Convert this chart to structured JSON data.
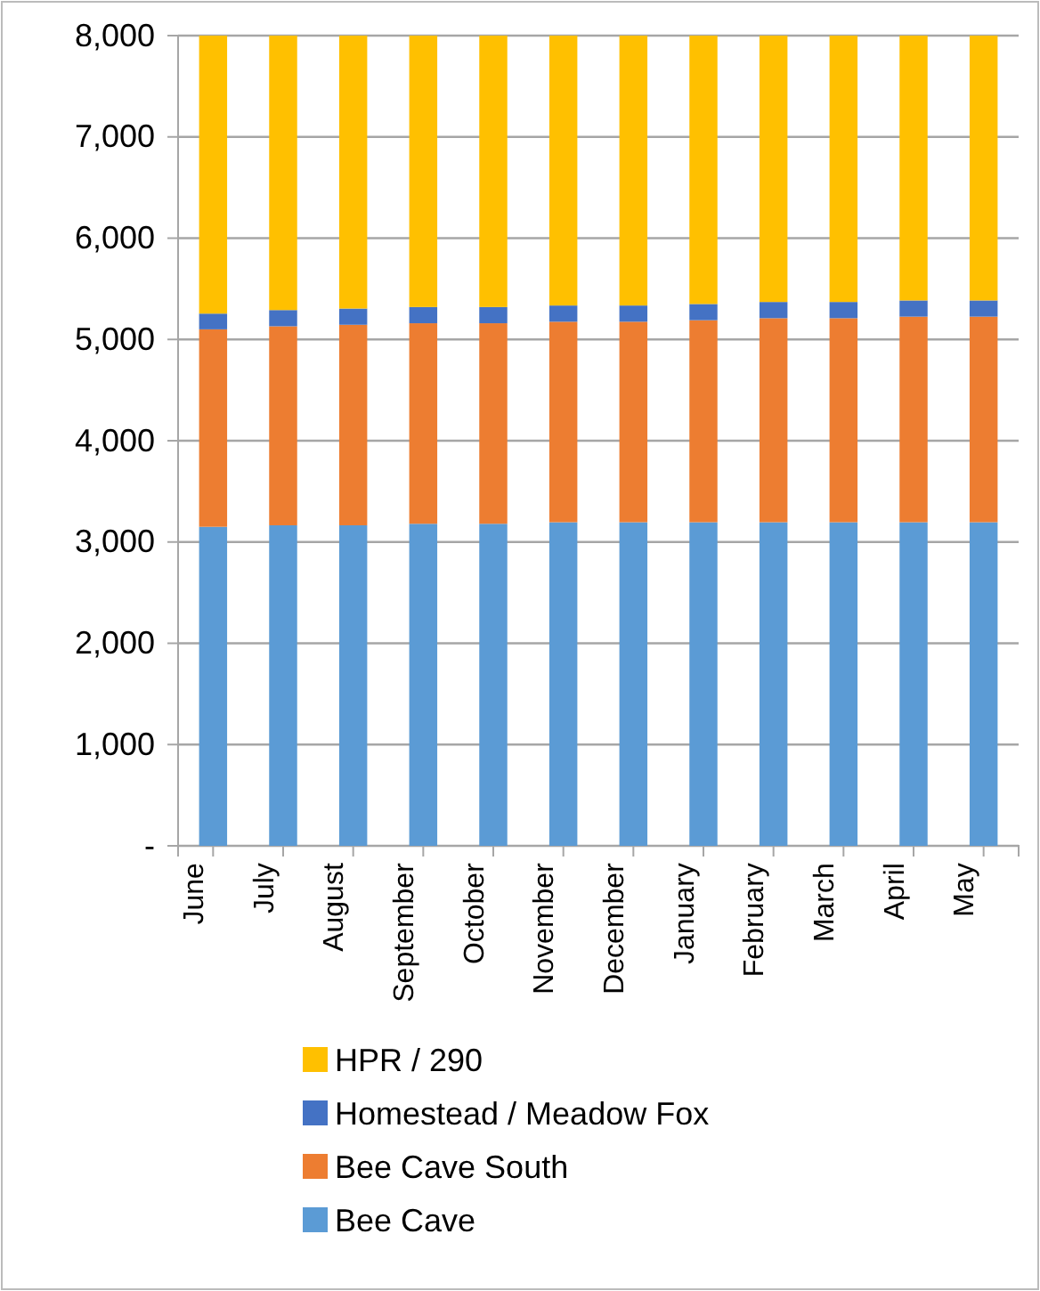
{
  "chart_data": {
    "type": "bar",
    "stacked": true,
    "categories": [
      "June",
      "July",
      "August",
      "September",
      "October",
      "November",
      "December",
      "January",
      "February",
      "March",
      "April",
      "May"
    ],
    "series": [
      {
        "name": "Bee Cave",
        "color": "#5b9bd5",
        "values": [
          3150,
          3165,
          3165,
          3180,
          3180,
          3195,
          3195,
          3195,
          3195,
          3195,
          3195,
          3195
        ]
      },
      {
        "name": "Bee Cave South",
        "color": "#ed7d31",
        "values": [
          1950,
          1965,
          1980,
          1980,
          1980,
          1980,
          1980,
          1995,
          2015,
          2015,
          2030,
          2030
        ]
      },
      {
        "name": "Homestead / Meadow Fox",
        "color": "#4472c4",
        "values": [
          155,
          160,
          160,
          160,
          160,
          160,
          160,
          160,
          160,
          160,
          160,
          160
        ]
      },
      {
        "name": "HPR / 290",
        "color": "#ffc000",
        "values": [
          2745,
          2710,
          2695,
          2680,
          2680,
          2665,
          2665,
          2650,
          2630,
          2630,
          2615,
          2615
        ]
      }
    ],
    "ylim": [
      0,
      8000
    ],
    "yticks": [
      {
        "value": 0,
        "label": "-"
      },
      {
        "value": 1000,
        "label": "1,000"
      },
      {
        "value": 2000,
        "label": "2,000"
      },
      {
        "value": 3000,
        "label": "3,000"
      },
      {
        "value": 4000,
        "label": "4,000"
      },
      {
        "value": 5000,
        "label": "5,000"
      },
      {
        "value": 6000,
        "label": "6,000"
      },
      {
        "value": 7000,
        "label": "7,000"
      },
      {
        "value": 8000,
        "label": "8,000"
      }
    ],
    "grid": "y",
    "legend": "bottom"
  }
}
